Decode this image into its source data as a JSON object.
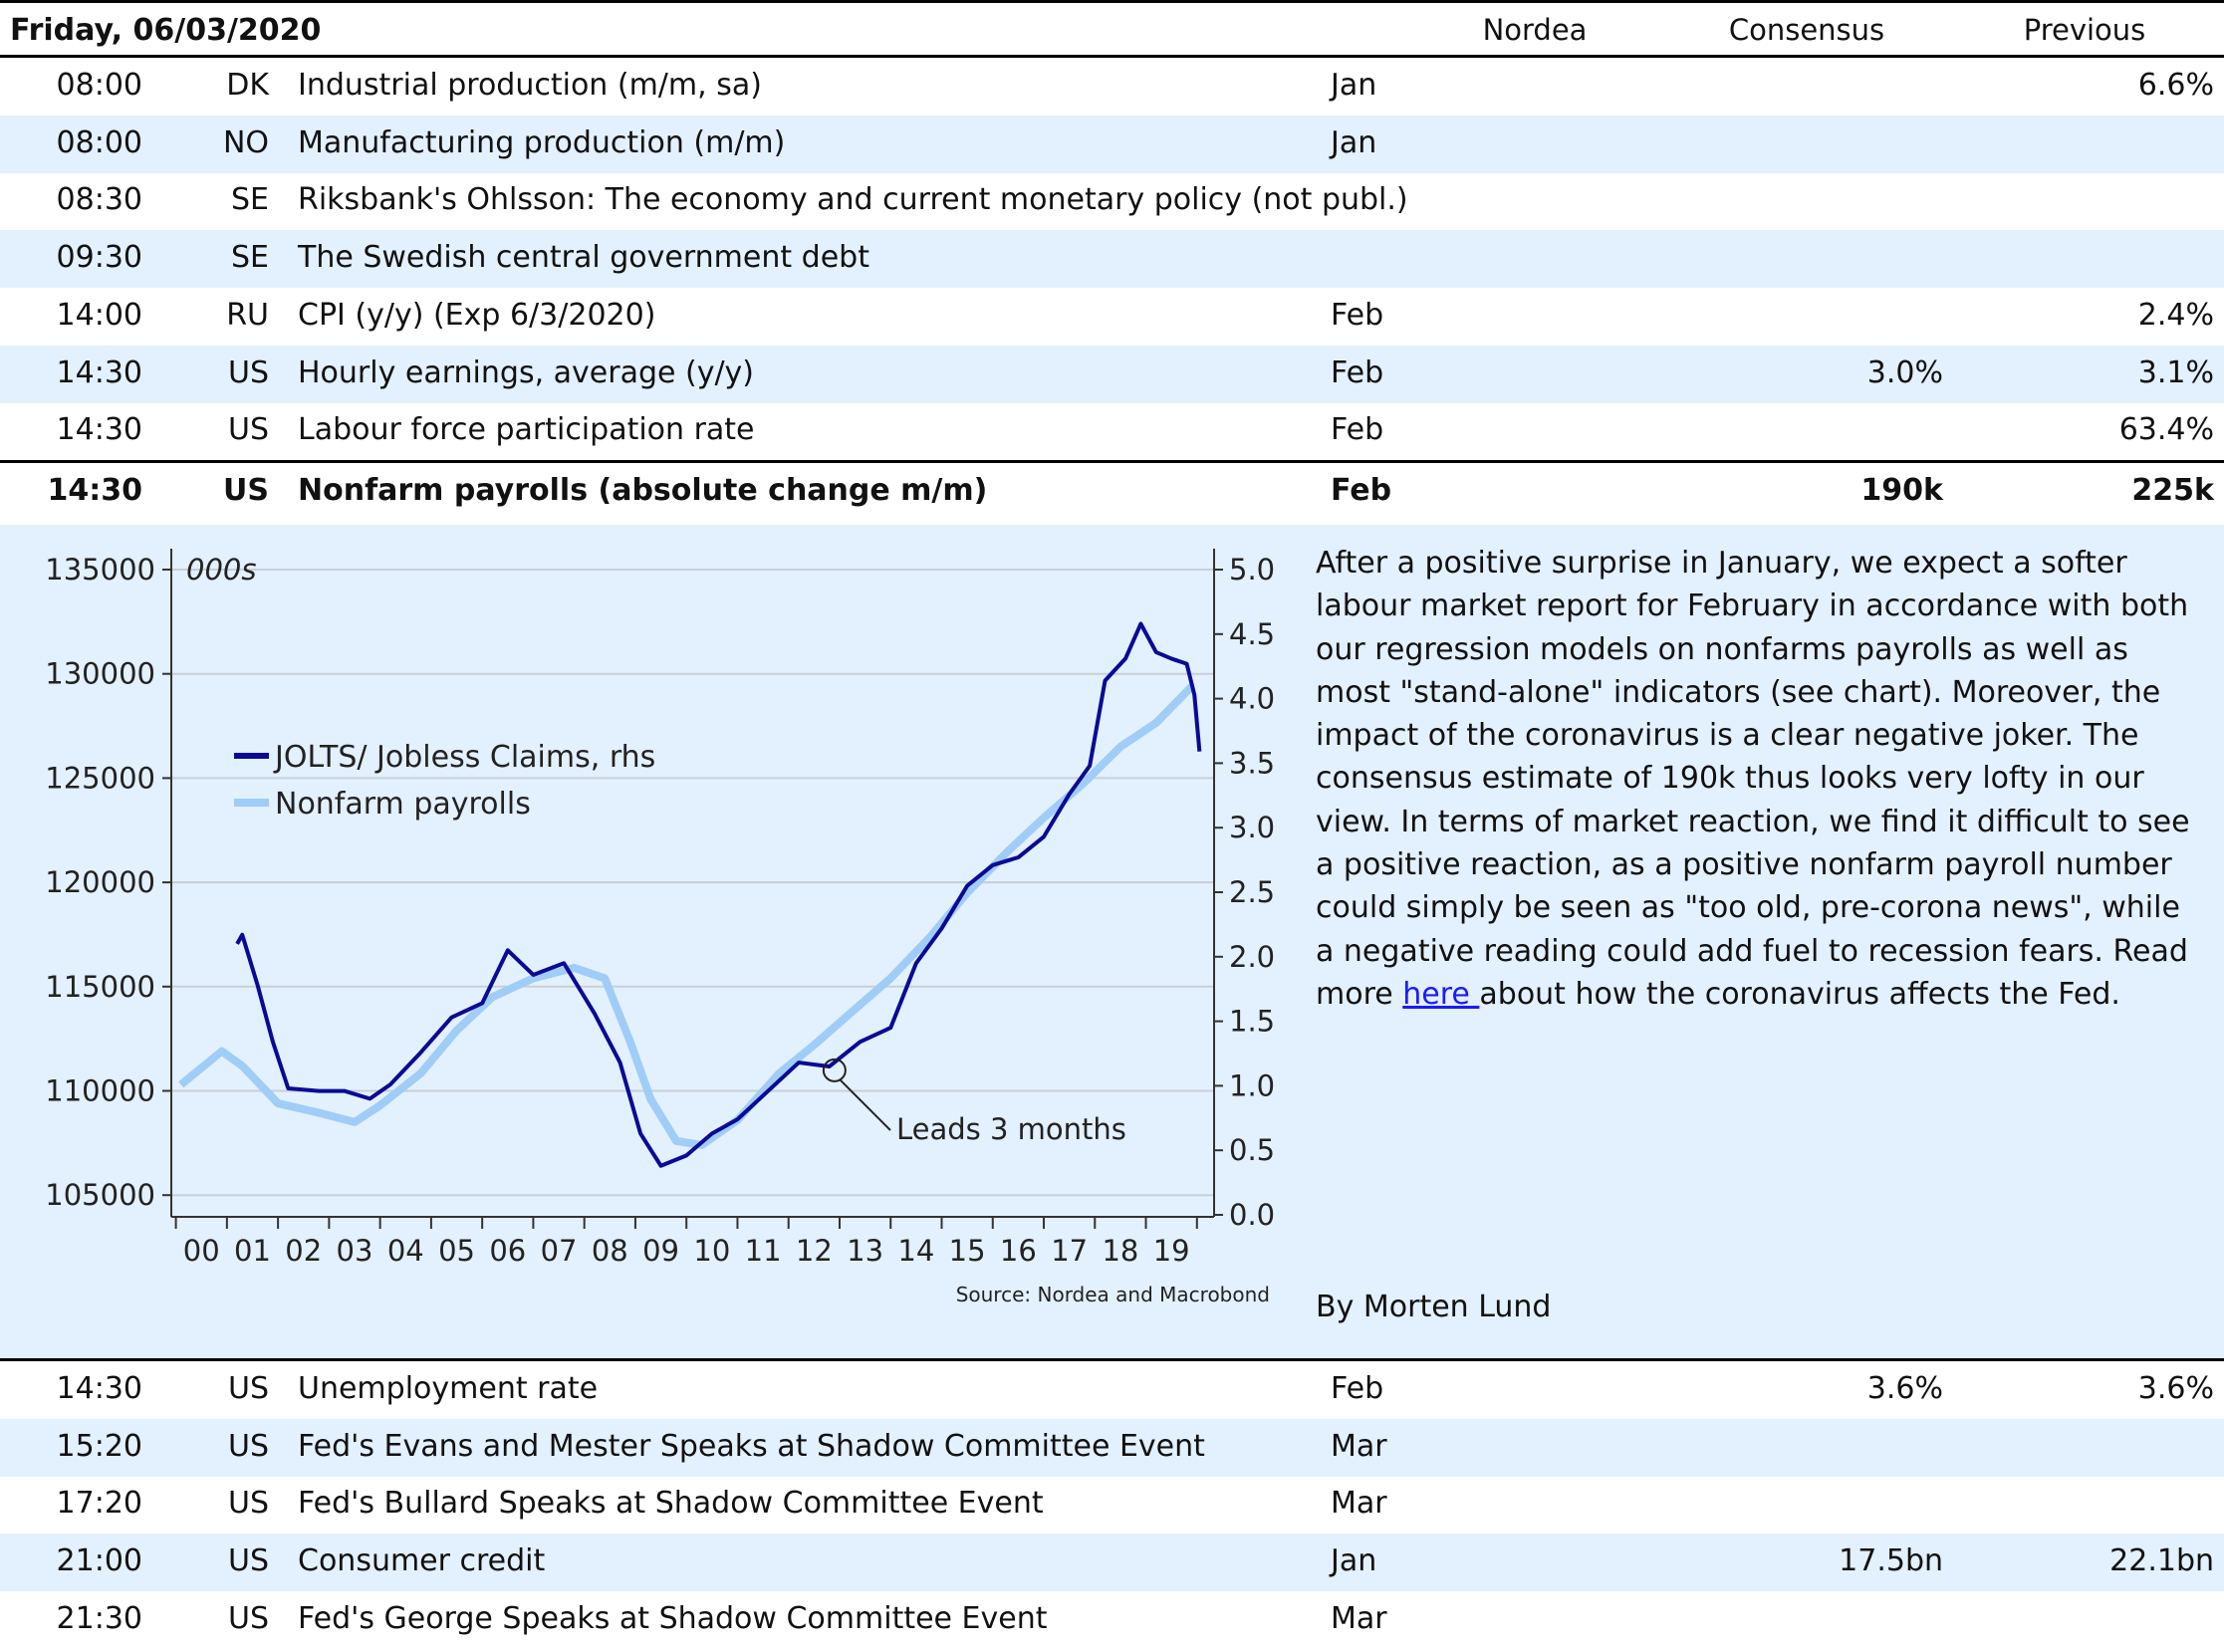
{
  "header": {
    "date": "Friday, 06/03/2020",
    "col_nordea": "Nordea",
    "col_consensus": "Consensus",
    "col_previous": "Previous"
  },
  "rows_top": [
    {
      "time": "08:00",
      "country": "DK",
      "event": "Industrial production (m/m, sa)",
      "period": "Jan",
      "nordea": "",
      "consensus": "",
      "previous": "6.6%"
    },
    {
      "time": "08:00",
      "country": "NO",
      "event": "Manufacturing production (m/m)",
      "period": "Jan",
      "nordea": "",
      "consensus": "",
      "previous": ""
    },
    {
      "time": "08:30",
      "country": "SE",
      "event": "Riksbank's Ohlsson: The economy and current monetary policy (not publ.)",
      "period": "",
      "nordea": "",
      "consensus": "",
      "previous": ""
    },
    {
      "time": "09:30",
      "country": "SE",
      "event": "The Swedish central government debt",
      "period": "",
      "nordea": "",
      "consensus": "",
      "previous": ""
    },
    {
      "time": "14:00",
      "country": "RU",
      "event": "CPI (y/y) (Exp 6/3/2020)",
      "period": "Feb",
      "nordea": "",
      "consensus": "",
      "previous": "2.4%"
    },
    {
      "time": "14:30",
      "country": "US",
      "event": "Hourly earnings, average (y/y)",
      "period": "Feb",
      "nordea": "",
      "consensus": "3.0%",
      "previous": "3.1%"
    },
    {
      "time": "14:30",
      "country": "US",
      "event": "Labour force participation rate",
      "period": "Feb",
      "nordea": "",
      "consensus": "",
      "previous": "63.4%"
    }
  ],
  "highlight": {
    "time": "14:30",
    "country": "US",
    "event": "Nonfarm payrolls (absolute change m/m)",
    "period": "Feb",
    "nordea": "",
    "consensus": "190k",
    "previous": "225k"
  },
  "commentary": {
    "text": "After a positive surprise in January, we expect a softer labour market report for February in accordance with both our regression models on nonfarms payrolls as well as most \"stand-alone\" indicators (see chart). Moreover, the impact of the coronavirus is a clear negative joker. The consensus estimate of 190k thus looks very lofty in our view. In terms of market reaction, we find it difficult to see a positive reaction, as a positive nonfarm payroll number could simply be seen as \"too old, pre-corona news\", while a negative reading could add fuel to recession fears. Read more ",
    "link": "here ",
    "text_after": "about how the coronavirus affects the Fed.",
    "author": "By Morten Lund"
  },
  "rows_bottom": [
    {
      "time": "14:30",
      "country": "US",
      "event": "Unemployment rate",
      "period": "Feb",
      "nordea": "",
      "consensus": "3.6%",
      "previous": "3.6%"
    },
    {
      "time": "15:20",
      "country": "US",
      "event": "Fed's Evans and Mester Speaks at Shadow Committee Event",
      "period": "Mar",
      "nordea": "",
      "consensus": "",
      "previous": ""
    },
    {
      "time": "17:20",
      "country": "US",
      "event": "Fed's Bullard Speaks at Shadow Committee Event",
      "period": "Mar",
      "nordea": "",
      "consensus": "",
      "previous": ""
    },
    {
      "time": "21:00",
      "country": "US",
      "event": "Consumer credit",
      "period": "Jan",
      "nordea": "",
      "consensus": "17.5bn",
      "previous": "22.1bn"
    },
    {
      "time": "21:30",
      "country": "US",
      "event": "Fed's George Speaks at Shadow Committee Event",
      "period": "Mar",
      "nordea": "",
      "consensus": "",
      "previous": ""
    }
  ],
  "chart_data": {
    "type": "line",
    "unit_label": "000s",
    "source": "Source: Nordea and Macrobond",
    "annotation": "Leads 3 months",
    "annotation_x": 2012.9,
    "annotation_y_rhs": 1.12,
    "x_tick_labels": [
      "00",
      "01",
      "02",
      "03",
      "04",
      "05",
      "06",
      "07",
      "08",
      "09",
      "10",
      "11",
      "12",
      "13",
      "14",
      "15",
      "16",
      "17",
      "18",
      "19"
    ],
    "ylim_left": [
      105000,
      135000
    ],
    "yticks_left": [
      105000,
      110000,
      115000,
      120000,
      125000,
      130000,
      135000
    ],
    "ylim_right": [
      0,
      5
    ],
    "yticks_right": [
      "0.0",
      "0.5",
      "1.0",
      "1.5",
      "2.0",
      "2.5",
      "3.0",
      "3.5",
      "4.0",
      "4.5",
      "5.0"
    ],
    "colors": {
      "jolts": "#0a0a96",
      "nfp": "#9fcdf7",
      "grid": "#c9cfd6"
    },
    "series": [
      {
        "name": "JOLTS/ Jobless Claims, rhs",
        "axis": "right",
        "x": [
          2001.2,
          2001.3,
          2001.6,
          2001.9,
          2002.2,
          2002.8,
          2003.3,
          2003.8,
          2004.2,
          2004.8,
          2005.4,
          2006.0,
          2006.5,
          2007.0,
          2007.6,
          2008.2,
          2008.7,
          2009.1,
          2009.5,
          2010.0,
          2010.5,
          2011.0,
          2011.6,
          2012.2,
          2012.8,
          2013.4,
          2014.0,
          2014.5,
          2015.0,
          2015.5,
          2016.0,
          2016.5,
          2017.0,
          2017.5,
          2017.9,
          2018.2,
          2018.6,
          2018.9,
          2019.2,
          2019.5,
          2019.8,
          2019.95,
          2020.05
        ],
        "y": [
          2.1,
          2.17,
          1.78,
          1.34,
          0.98,
          0.96,
          0.96,
          0.9,
          1.01,
          1.26,
          1.53,
          1.64,
          2.05,
          1.86,
          1.95,
          1.56,
          1.18,
          0.63,
          0.38,
          0.46,
          0.63,
          0.74,
          0.96,
          1.18,
          1.15,
          1.34,
          1.45,
          1.95,
          2.22,
          2.55,
          2.71,
          2.77,
          2.93,
          3.26,
          3.48,
          4.14,
          4.31,
          4.58,
          4.36,
          4.31,
          4.27,
          4.03,
          3.59
        ]
      },
      {
        "name": "Nonfarm payrolls",
        "axis": "left",
        "x": [
          2000.1,
          2000.9,
          2001.3,
          2002.0,
          2002.8,
          2003.5,
          2004.0,
          2004.8,
          2005.5,
          2006.2,
          2007.0,
          2007.8,
          2008.4,
          2008.9,
          2009.3,
          2009.8,
          2010.3,
          2011.0,
          2011.8,
          2012.5,
          2013.2,
          2014.0,
          2014.8,
          2015.5,
          2016.3,
          2017.0,
          2017.8,
          2018.5,
          2019.2,
          2019.9
        ],
        "y": [
          110300,
          111900,
          111200,
          109400,
          108950,
          108500,
          109300,
          110850,
          112900,
          114500,
          115400,
          115900,
          115400,
          112350,
          109600,
          107600,
          107400,
          108600,
          110800,
          112200,
          113700,
          115400,
          117450,
          119500,
          121500,
          123100,
          124800,
          126500,
          127650,
          129400
        ]
      }
    ]
  }
}
